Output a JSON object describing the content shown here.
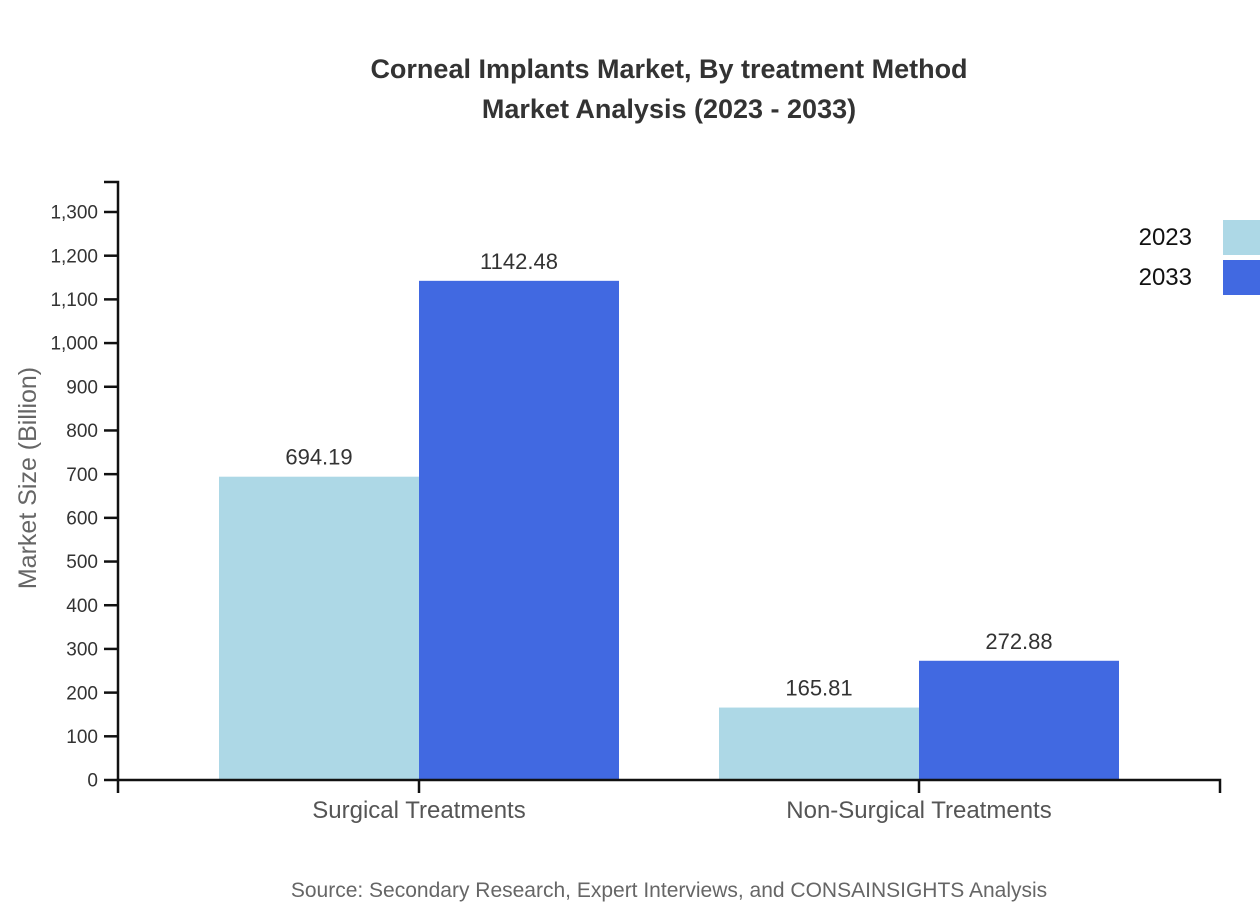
{
  "chart_data": {
    "type": "bar",
    "title_lines": [
      "Corneal Implants Market, By treatment Method",
      "Market Analysis (2023 - 2033)"
    ],
    "categories": [
      "Surgical Treatments",
      "Non-Surgical Treatments"
    ],
    "series": [
      {
        "name": "2023",
        "color": "#ADD8E6",
        "values": [
          694.19,
          165.81
        ]
      },
      {
        "name": "2033",
        "color": "#4169E1",
        "values": [
          1142.48,
          272.88
        ]
      }
    ],
    "ylabel": "Market Size (Billion)",
    "ylim": [
      0,
      1300
    ],
    "ytick_step": 100,
    "grid": false,
    "legend_position": "top-right",
    "source": "Source: Secondary Research, Expert Interviews, and CONSAINSIGHTS Analysis",
    "colors": {
      "axis": "#111111",
      "title_text": "#333333",
      "tick_text": "#333333",
      "value_text": "#333333",
      "category_text": "#555555",
      "ylabel_text": "#666666",
      "legend_text": "#111111",
      "source_text": "#666666"
    }
  }
}
